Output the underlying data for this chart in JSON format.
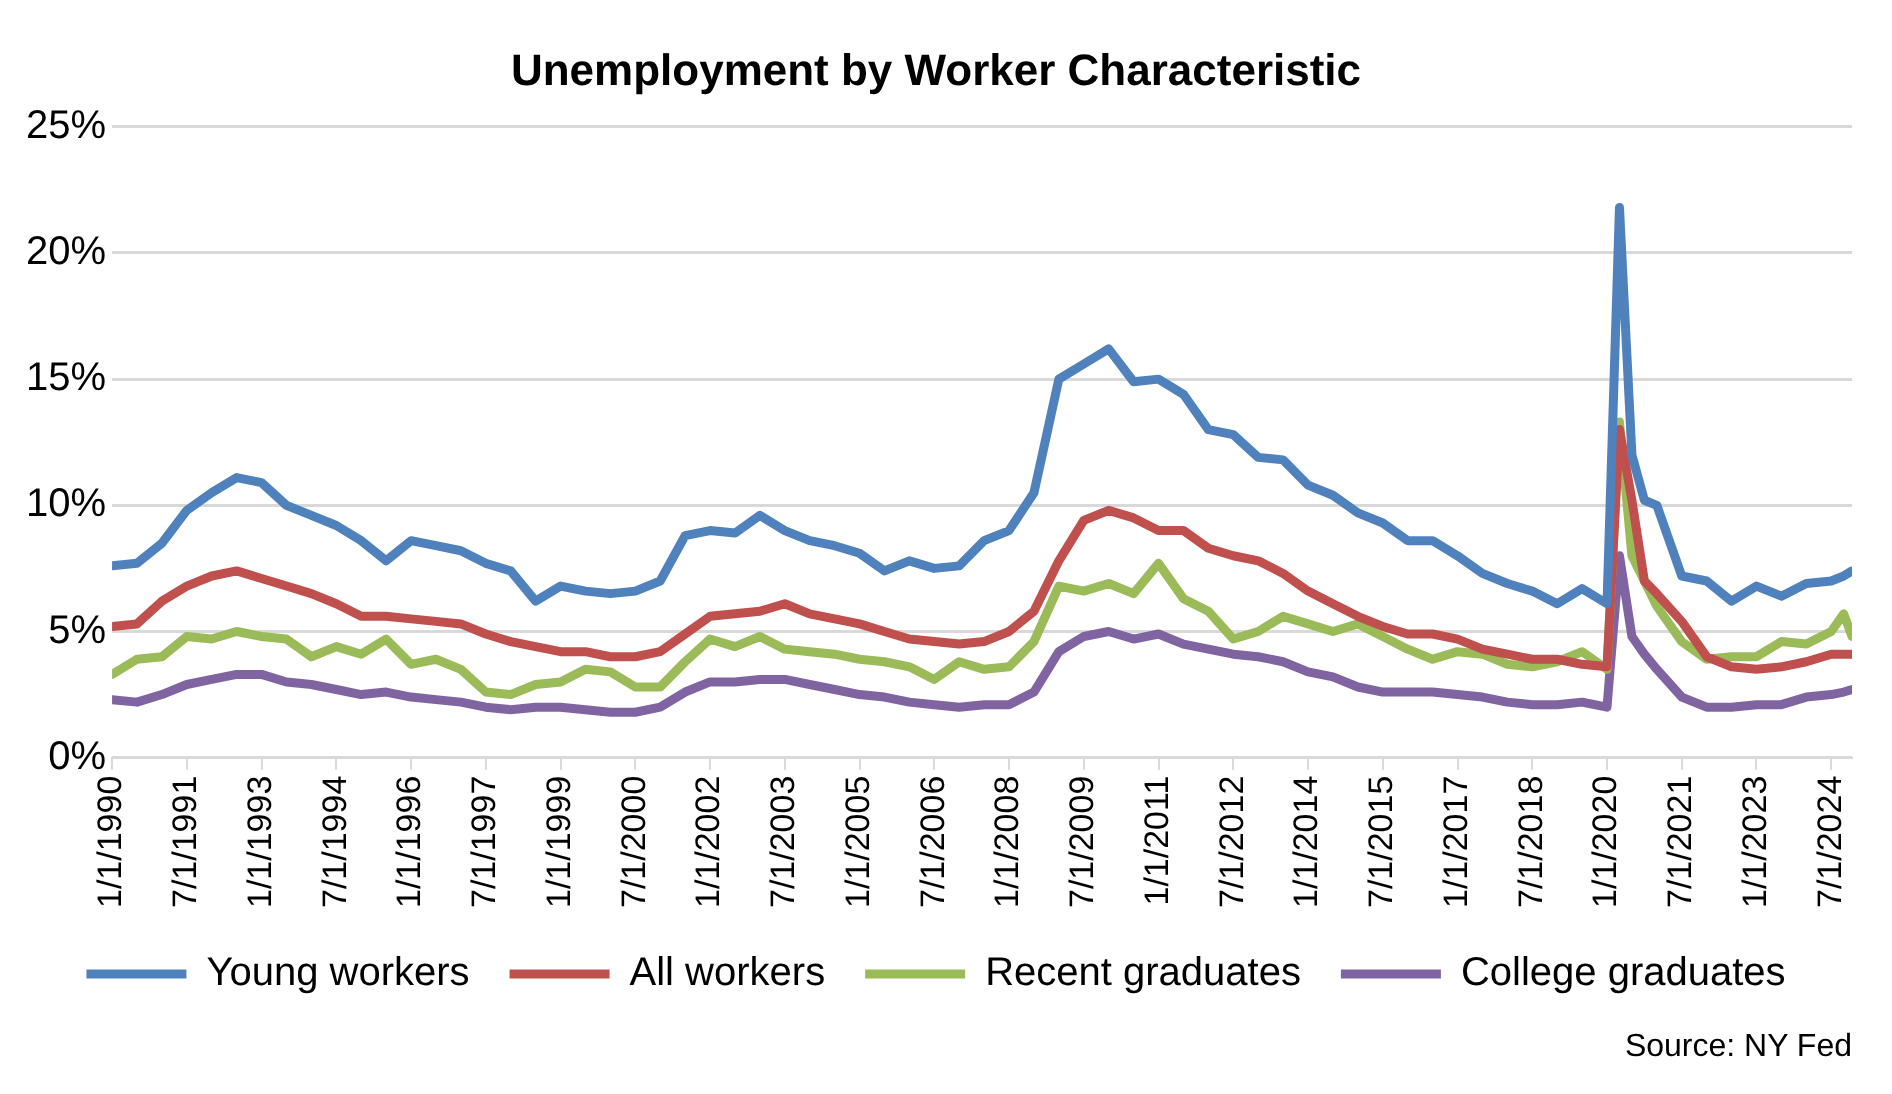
{
  "chart_data": {
    "type": "line",
    "title": "Unemployment by Worker Characteristic",
    "x": [
      "1990-01",
      "1990-07",
      "1991-01",
      "1991-07",
      "1992-01",
      "1992-07",
      "1993-01",
      "1993-07",
      "1994-01",
      "1994-07",
      "1995-01",
      "1995-07",
      "1996-01",
      "1996-07",
      "1997-01",
      "1997-07",
      "1998-01",
      "1998-07",
      "1999-01",
      "1999-07",
      "2000-01",
      "2000-07",
      "2001-01",
      "2001-07",
      "2002-01",
      "2002-07",
      "2003-01",
      "2003-07",
      "2004-01",
      "2004-07",
      "2005-01",
      "2005-07",
      "2006-01",
      "2006-07",
      "2007-01",
      "2007-07",
      "2008-01",
      "2008-07",
      "2009-01",
      "2009-07",
      "2010-01",
      "2010-07",
      "2011-01",
      "2011-07",
      "2012-01",
      "2012-07",
      "2013-01",
      "2013-07",
      "2014-01",
      "2014-07",
      "2015-01",
      "2015-07",
      "2016-01",
      "2016-07",
      "2017-01",
      "2017-07",
      "2018-01",
      "2018-07",
      "2019-01",
      "2019-07",
      "2020-01",
      "2020-04",
      "2020-07",
      "2020-10",
      "2021-01",
      "2021-07",
      "2022-01",
      "2022-07",
      "2023-01",
      "2023-07",
      "2024-01",
      "2024-07",
      "2024-10",
      "2024-12"
    ],
    "series": [
      {
        "name": "Young workers",
        "color": "#4f81bd",
        "values": [
          7.6,
          7.7,
          8.5,
          9.8,
          10.5,
          11.1,
          10.9,
          10.0,
          9.6,
          9.2,
          8.6,
          7.8,
          8.6,
          8.4,
          8.2,
          7.7,
          7.4,
          6.2,
          6.8,
          6.6,
          6.5,
          6.6,
          7.0,
          8.8,
          9.0,
          8.9,
          9.6,
          9.0,
          8.6,
          8.4,
          8.1,
          7.4,
          7.8,
          7.5,
          7.6,
          8.6,
          9.0,
          10.5,
          15.0,
          15.6,
          16.2,
          14.9,
          15.0,
          14.4,
          13.0,
          12.8,
          11.9,
          11.8,
          10.8,
          10.4,
          9.7,
          9.3,
          8.6,
          8.6,
          8.0,
          7.3,
          6.9,
          6.6,
          6.1,
          6.7,
          6.1,
          21.8,
          12.0,
          10.2,
          10.0,
          7.2,
          7.0,
          6.2,
          6.8,
          6.4,
          6.9,
          7.0,
          7.2,
          7.4
        ]
      },
      {
        "name": "All workers",
        "color": "#c0504d",
        "values": [
          5.2,
          5.3,
          6.2,
          6.8,
          7.2,
          7.4,
          7.1,
          6.8,
          6.5,
          6.1,
          5.6,
          5.6,
          5.5,
          5.4,
          5.3,
          4.9,
          4.6,
          4.4,
          4.2,
          4.2,
          4.0,
          4.0,
          4.2,
          4.9,
          5.6,
          5.7,
          5.8,
          6.1,
          5.7,
          5.5,
          5.3,
          5.0,
          4.7,
          4.6,
          4.5,
          4.6,
          5.0,
          5.8,
          7.8,
          9.4,
          9.8,
          9.5,
          9.0,
          9.0,
          8.3,
          8.0,
          7.8,
          7.3,
          6.6,
          6.1,
          5.6,
          5.2,
          4.9,
          4.9,
          4.7,
          4.3,
          4.1,
          3.9,
          3.9,
          3.7,
          3.6,
          13.0,
          10.2,
          7.0,
          6.5,
          5.4,
          4.0,
          3.6,
          3.5,
          3.6,
          3.8,
          4.1,
          4.1,
          4.1
        ]
      },
      {
        "name": "Recent graduates",
        "color": "#9bbb59",
        "values": [
          3.3,
          3.9,
          4.0,
          4.8,
          4.7,
          5.0,
          4.8,
          4.7,
          4.0,
          4.4,
          4.1,
          4.7,
          3.7,
          3.9,
          3.5,
          2.6,
          2.5,
          2.9,
          3.0,
          3.5,
          3.4,
          2.8,
          2.8,
          3.8,
          4.7,
          4.4,
          4.8,
          4.3,
          4.2,
          4.1,
          3.9,
          3.8,
          3.6,
          3.1,
          3.8,
          3.5,
          3.6,
          4.6,
          6.8,
          6.6,
          6.9,
          6.5,
          7.7,
          6.3,
          5.8,
          4.7,
          5.0,
          5.6,
          5.3,
          5.0,
          5.3,
          4.8,
          4.3,
          3.9,
          4.2,
          4.1,
          3.7,
          3.6,
          3.8,
          4.2,
          3.5,
          13.3,
          8.0,
          7.0,
          6.0,
          4.6,
          3.9,
          4.0,
          4.0,
          4.6,
          4.5,
          5.0,
          5.7,
          4.8
        ]
      },
      {
        "name": "College graduates",
        "color": "#8064a2",
        "values": [
          2.3,
          2.2,
          2.5,
          2.9,
          3.1,
          3.3,
          3.3,
          3.0,
          2.9,
          2.7,
          2.5,
          2.6,
          2.4,
          2.3,
          2.2,
          2.0,
          1.9,
          2.0,
          2.0,
          1.9,
          1.8,
          1.8,
          2.0,
          2.6,
          3.0,
          3.0,
          3.1,
          3.1,
          2.9,
          2.7,
          2.5,
          2.4,
          2.2,
          2.1,
          2.0,
          2.1,
          2.1,
          2.6,
          4.2,
          4.8,
          5.0,
          4.7,
          4.9,
          4.5,
          4.3,
          4.1,
          4.0,
          3.8,
          3.4,
          3.2,
          2.8,
          2.6,
          2.6,
          2.6,
          2.5,
          2.4,
          2.2,
          2.1,
          2.1,
          2.2,
          2.0,
          8.0,
          4.8,
          4.1,
          3.5,
          2.4,
          2.0,
          2.0,
          2.1,
          2.1,
          2.4,
          2.5,
          2.6,
          2.7
        ]
      }
    ],
    "xlim": [
      "1990-01",
      "2024-12"
    ],
    "xticks": [
      {
        "value": "1990-01-01",
        "label": "1/1/1990"
      },
      {
        "value": "1991-07-01",
        "label": "7/1/1991"
      },
      {
        "value": "1993-01-01",
        "label": "1/1/1993"
      },
      {
        "value": "1994-07-01",
        "label": "7/1/1994"
      },
      {
        "value": "1996-01-01",
        "label": "1/1/1996"
      },
      {
        "value": "1997-07-01",
        "label": "7/1/1997"
      },
      {
        "value": "1999-01-01",
        "label": "1/1/1999"
      },
      {
        "value": "2000-07-01",
        "label": "7/1/2000"
      },
      {
        "value": "2002-01-01",
        "label": "1/1/2002"
      },
      {
        "value": "2003-07-01",
        "label": "7/1/2003"
      },
      {
        "value": "2005-01-01",
        "label": "1/1/2005"
      },
      {
        "value": "2006-07-01",
        "label": "7/1/2006"
      },
      {
        "value": "2008-01-01",
        "label": "1/1/2008"
      },
      {
        "value": "2009-07-01",
        "label": "7/1/2009"
      },
      {
        "value": "2011-01-01",
        "label": "1/1/2011"
      },
      {
        "value": "2012-07-01",
        "label": "7/1/2012"
      },
      {
        "value": "2014-01-01",
        "label": "1/1/2014"
      },
      {
        "value": "2015-07-01",
        "label": "7/1/2015"
      },
      {
        "value": "2017-01-01",
        "label": "1/1/2017"
      },
      {
        "value": "2018-07-01",
        "label": "7/1/2018"
      },
      {
        "value": "2020-01-01",
        "label": "1/1/2020"
      },
      {
        "value": "2021-07-01",
        "label": "7/1/2021"
      },
      {
        "value": "2023-01-01",
        "label": "1/1/2023"
      },
      {
        "value": "2024-07-01",
        "label": "7/1/2024"
      }
    ],
    "ylim": [
      0,
      25
    ],
    "yticks": [
      {
        "value": 0,
        "label": "0%"
      },
      {
        "value": 5,
        "label": "5%"
      },
      {
        "value": 10,
        "label": "10%"
      },
      {
        "value": 15,
        "label": "15%"
      },
      {
        "value": 20,
        "label": "20%"
      },
      {
        "value": 25,
        "label": "25%"
      }
    ],
    "grid": "y",
    "legend": "bottom",
    "marker": "none",
    "line_style": "solid",
    "annotations": [
      "Source: NY Fed"
    ]
  }
}
